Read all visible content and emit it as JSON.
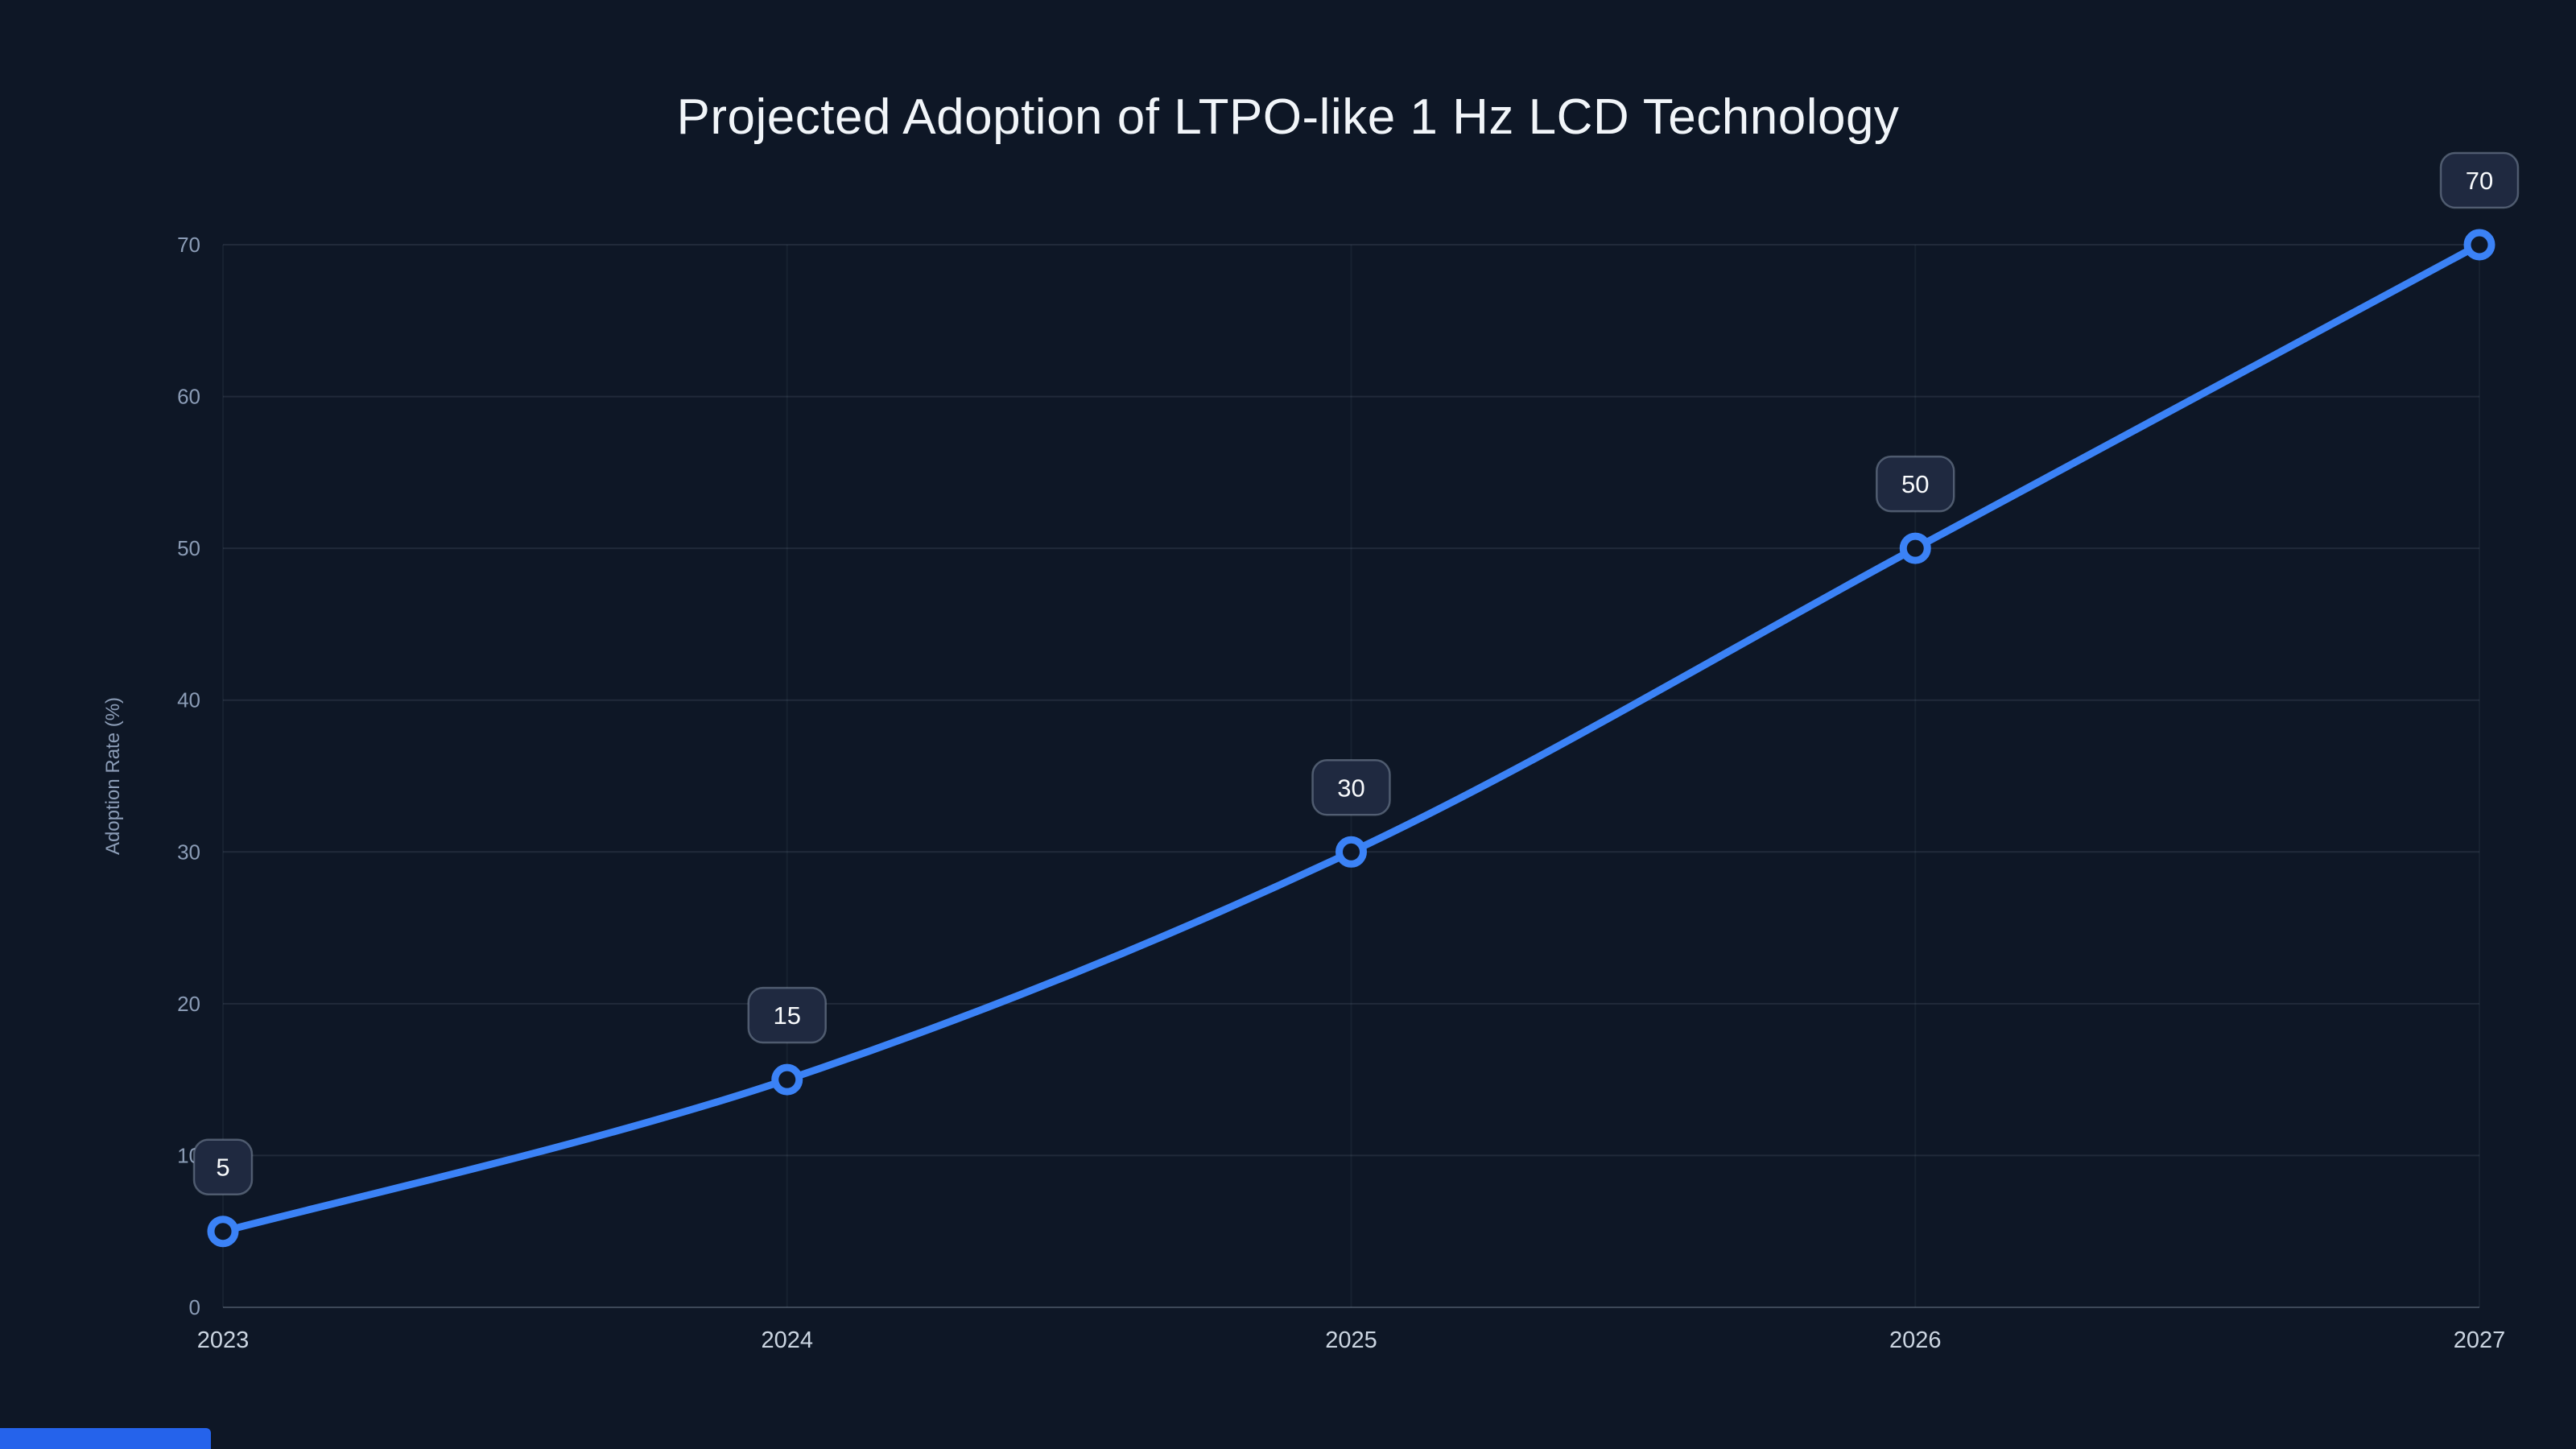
{
  "page": {
    "background_color": "#0e1726",
    "accent_color": "#3b82f6",
    "accent_bar_color": "#2563eb"
  },
  "chart_data": {
    "type": "line",
    "title": "Projected Adoption of LTPO-like 1 Hz LCD Technology",
    "categories": [
      "2023",
      "2024",
      "2025",
      "2026",
      "2027"
    ],
    "series": [
      {
        "name": "Adoption Rate",
        "values": [
          5,
          15,
          30,
          50,
          70
        ]
      }
    ],
    "data_labels": [
      "5",
      "15",
      "30",
      "50",
      "70"
    ],
    "xlabel": "",
    "ylabel": "Adoption Rate (%)",
    "ylim": [
      0,
      70
    ],
    "yticks": [
      0,
      10,
      20,
      30,
      40,
      50,
      60,
      70
    ],
    "grid": true,
    "legend": false,
    "smooth": true,
    "line_color": "#3b82f6",
    "marker_style": "open-circle",
    "marker_fill": "#0e1726",
    "grid_color": "rgba(148,163,184,0.14)",
    "axis_line_color": "rgba(148,163,184,0.35)",
    "x_tick_color": "#cbd5e1",
    "y_tick_color": "#8b9cb6",
    "label_badge_fill": "#1f2940",
    "label_badge_border": "rgba(148,163,184,0.45)",
    "label_text_color": "#f8fafc"
  }
}
